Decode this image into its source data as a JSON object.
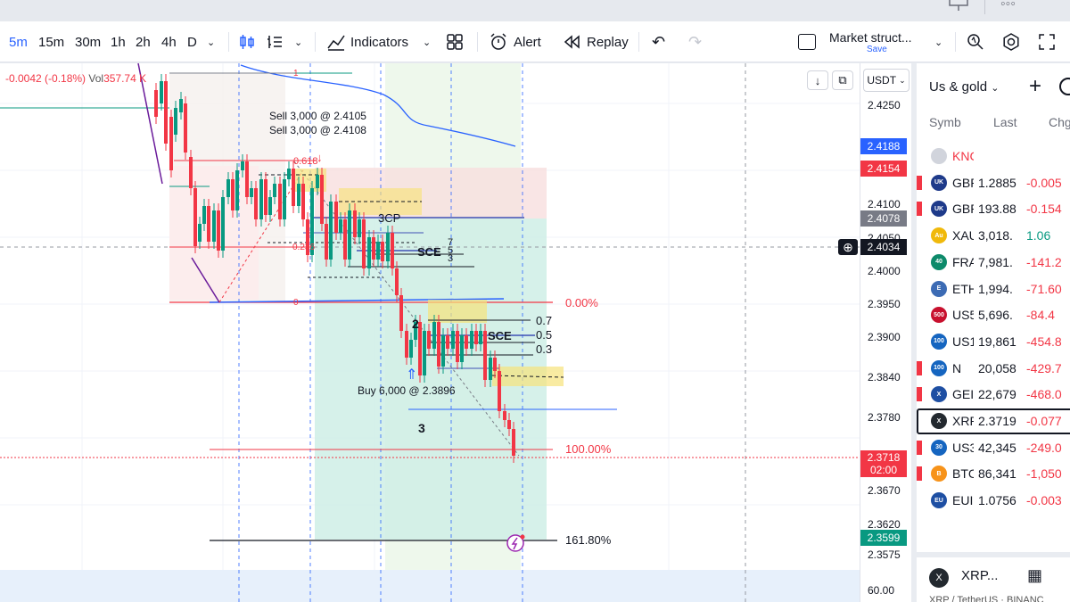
{
  "toolbar": {
    "intervals": [
      "5m",
      "15m",
      "30m",
      "1h",
      "2h",
      "4h",
      "D"
    ],
    "indicators_label": "Indicators",
    "alert_label": "Alert",
    "replay_label": "Replay",
    "layout_name": "Market struct...",
    "layout_sub": "Save"
  },
  "legend": {
    "change": "-0.0042 (-0.18%)",
    "vol_label": "Vol",
    "vol_value": "357.74 K"
  },
  "price_axis": {
    "currency": "USDT",
    "ticks": [
      "2.4250",
      "2.4100",
      "2.4050",
      "2.4000",
      "2.3950",
      "2.3900",
      "2.3840",
      "2.3780",
      "2.3670",
      "2.3620",
      "2.3575",
      "60.00"
    ],
    "labels": [
      {
        "text": "2.4188",
        "color": "#2962ff"
      },
      {
        "text": "2.4154",
        "color": "#f23645"
      },
      {
        "text": "2.4078",
        "color": "#787b86"
      },
      {
        "text": "2.4034",
        "color": "#131722"
      },
      {
        "text": "2.3718",
        "sub": "02:00",
        "color": "#f23645"
      },
      {
        "text": "2.3599",
        "color": "#089981"
      }
    ]
  },
  "chart_annotations": {
    "sell1": "Sell 3,000 @ 2.4105",
    "sell2": "Sell 3,000 @ 2.4108",
    "buy": "Buy 6,000 @ 2.3896",
    "fib_top": "1",
    "fib_618": "0.618",
    "fib_236": "0.236",
    "fib_0": "0",
    "pct_0": "0.00%",
    "pct_100": "100.00%",
    "pct_161": "161.80%",
    "lvl_07": "0.7",
    "lvl_05": "0.5",
    "lvl_03": "0.3",
    "sce": "SCE",
    "sce2": "SCE",
    "cp": "3CP",
    "n2": "2",
    "n3": "3",
    "n7": "7",
    "n5": "5",
    "n3b": "3"
  },
  "watchlist": {
    "title": "Us & gold",
    "headers": {
      "symbol": "Symb",
      "last": "Last",
      "chg": "Chg"
    },
    "rows": [
      {
        "sym": "KNC",
        "last": "",
        "chg": "",
        "icon": "",
        "icon_color": "#d1d4dc",
        "chg_color": "#f23645",
        "flag": false,
        "sym_color": "#f23645"
      },
      {
        "sym": "GBP",
        "last": "1.2885",
        "chg": "-0.005",
        "icon": "UK",
        "icon_color": "#1e3a8a",
        "chg_color": "#f23645",
        "flag": true,
        "sym_color": "#131722"
      },
      {
        "sym": "GBP",
        "last": "193.88",
        "chg": "-0.154",
        "icon": "UK",
        "icon_color": "#1e3a8a",
        "chg_color": "#f23645",
        "flag": true,
        "sym_color": "#131722"
      },
      {
        "sym": "XAU",
        "last": "3,018.",
        "chg": "1.06",
        "icon": "Au",
        "icon_color": "#f0b90b",
        "chg_color": "#089981",
        "flag": false,
        "sym_color": "#131722"
      },
      {
        "sym": "FRA",
        "last": "7,981.",
        "chg": "-141.2",
        "icon": "40",
        "icon_color": "#0d8a6a",
        "chg_color": "#f23645",
        "flag": false,
        "sym_color": "#131722"
      },
      {
        "sym": "ETH",
        "last": "1,994.",
        "chg": "-71.60",
        "icon": "E",
        "icon_color": "#3c6bb4",
        "chg_color": "#f23645",
        "flag": false,
        "sym_color": "#131722"
      },
      {
        "sym": "US5",
        "last": "5,696.",
        "chg": "-84.4",
        "icon": "500",
        "icon_color": "#c8102e",
        "chg_color": "#f23645",
        "flag": false,
        "sym_color": "#131722"
      },
      {
        "sym": "US1",
        "last": "19,861",
        "chg": "-454.8",
        "icon": "100",
        "icon_color": "#1565c0",
        "chg_color": "#f23645",
        "flag": false,
        "sym_color": "#131722"
      },
      {
        "sym": "N",
        "last": "20,058",
        "chg": "-429.7",
        "icon": "100",
        "icon_color": "#1565c0",
        "chg_color": "#f23645",
        "flag": true,
        "sym_color": "#131722"
      },
      {
        "sym": "GEI",
        "last": "22,679",
        "chg": "-468.0",
        "icon": "X",
        "icon_color": "#1e4fa3",
        "chg_color": "#f23645",
        "flag": true,
        "sym_color": "#131722"
      },
      {
        "sym": "XRP",
        "last": "2.3719",
        "chg": "-0.077",
        "icon": "X",
        "icon_color": "#23292f",
        "chg_color": "#f23645",
        "flag": false,
        "sym_color": "#131722",
        "selected": true
      },
      {
        "sym": "US3",
        "last": "42,345",
        "chg": "-249.0",
        "icon": "30",
        "icon_color": "#1565c0",
        "chg_color": "#f23645",
        "flag": true,
        "sym_color": "#131722"
      },
      {
        "sym": "BTC",
        "last": "86,341",
        "chg": "-1,050",
        "icon": "B",
        "icon_color": "#f7931a",
        "chg_color": "#f23645",
        "flag": true,
        "sym_color": "#131722"
      },
      {
        "sym": "EUI",
        "last": "1.0756",
        "chg": "-0.003",
        "icon": "EU",
        "icon_color": "#1e4fa3",
        "chg_color": "#f23645",
        "flag": false,
        "sym_color": "#131722"
      }
    ],
    "detail_symbol": "XRP...",
    "detail_sub": "XRP / TetherUS · BINANC"
  }
}
